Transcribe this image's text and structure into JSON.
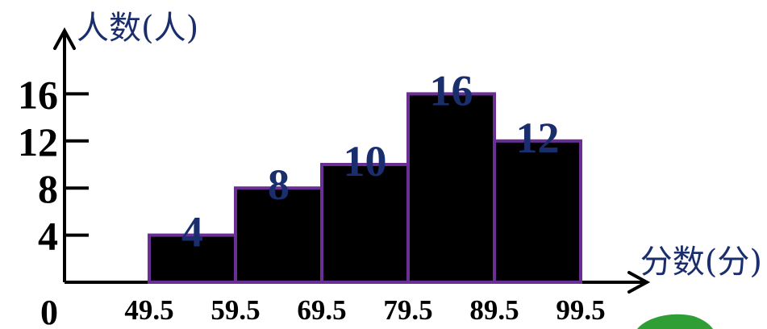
{
  "chart_data": {
    "type": "bar",
    "ylabel": "人数(人)",
    "xlabel": "分数(分)",
    "origin_label": "0",
    "y_ticks": [
      4,
      8,
      12,
      16
    ],
    "ylim": [
      0,
      18
    ],
    "x_ticks": [
      "49.5",
      "59.5",
      "69.5",
      "79.5",
      "89.5",
      "99.5"
    ],
    "bins": [
      {
        "from": 49.5,
        "to": 59.5,
        "value": 4,
        "label": "4"
      },
      {
        "from": 59.5,
        "to": 69.5,
        "value": 8,
        "label": "8"
      },
      {
        "from": 69.5,
        "to": 79.5,
        "value": 10,
        "label": "10"
      },
      {
        "from": 79.5,
        "to": 89.5,
        "value": 16,
        "label": "16"
      },
      {
        "from": 89.5,
        "to": 99.5,
        "value": 12,
        "label": "12"
      }
    ],
    "grid": false,
    "colors": {
      "bar_fill": "#000000",
      "bar_edge": "#6a2f95",
      "data_label": "#1a2e6e",
      "axis_title": "#1a2e6e"
    }
  }
}
